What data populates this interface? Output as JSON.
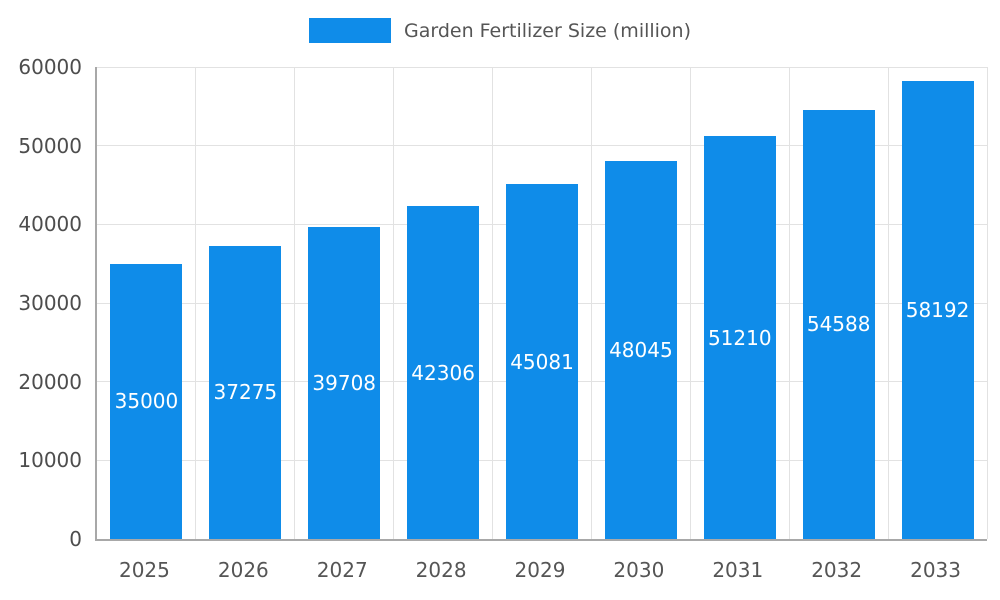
{
  "chart_data": {
    "type": "bar",
    "title": "Garden Fertilizer Size (million)",
    "categories": [
      "2025",
      "2026",
      "2027",
      "2028",
      "2029",
      "2030",
      "2031",
      "2032",
      "2033"
    ],
    "values": [
      35000,
      37275,
      39708,
      42306,
      45081,
      48045,
      51210,
      54588,
      58192
    ],
    "xlabel": "",
    "ylabel": "",
    "ylim": [
      0,
      60000
    ],
    "yticks": [
      0,
      10000,
      20000,
      30000,
      40000,
      50000,
      60000
    ],
    "grid": true,
    "legend_position": "top-center",
    "bar_label_position": "inside-center",
    "colors": {
      "bar": "#0f8ce9",
      "bar_label_text": "#ffffff",
      "gridline": "#e2e2e2",
      "axis_line": "#a8a8a8",
      "axis_tick_text": "#4d4d4d",
      "legend_text": "#555555",
      "background": "#ffffff"
    }
  }
}
